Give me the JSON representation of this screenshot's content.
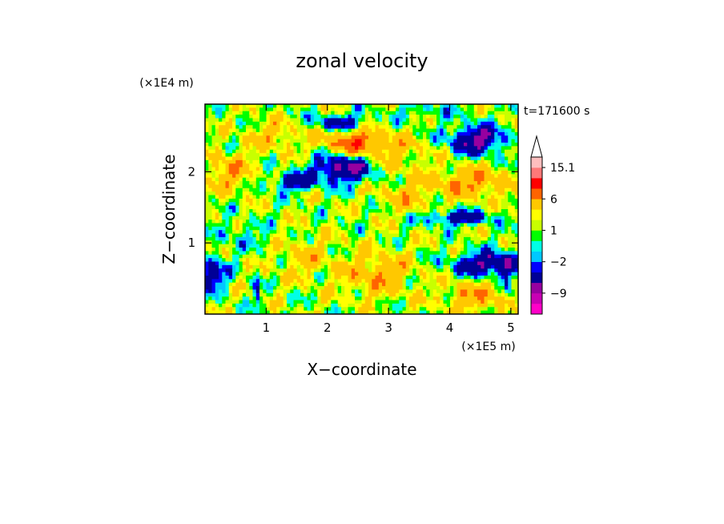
{
  "chart_data": {
    "type": "heatmap",
    "title": "zonal velocity",
    "xlabel": "X−coordinate",
    "ylabel": "Z−coordinate",
    "x_unit": "(×1E5 m)",
    "y_unit": "(×1E4 m)",
    "time_label": "t=171600 s",
    "xlim": [
      0,
      5.12
    ],
    "ylim": [
      0,
      2.95
    ],
    "x_ticks": [
      1,
      2,
      3,
      4,
      5
    ],
    "y_ticks": [
      1,
      2
    ],
    "colorbar": {
      "levels": [
        -15.1,
        -12.1,
        -9,
        -6,
        -3,
        -2,
        -1,
        0,
        1,
        2,
        3,
        6,
        9,
        12,
        15.1
      ],
      "colors": [
        "#ff00c8",
        "#c800b4",
        "#9600a0",
        "#000096",
        "#0000ff",
        "#00c8ff",
        "#00ffe6",
        "#00ff00",
        "#c8ff00",
        "#ffff00",
        "#ffc800",
        "#ff6400",
        "#ff0000",
        "#ff7878",
        "#ffbebe"
      ],
      "tick_labels": [
        {
          "value": 15.1,
          "label": "15.1"
        },
        {
          "value": 6,
          "label": "6"
        },
        {
          "value": 1,
          "label": "1"
        },
        {
          "value": -2,
          "label": "−2"
        },
        {
          "value": -9,
          "label": "−9"
        }
      ]
    },
    "features": [
      {
        "x": 4.45,
        "z": 2.45,
        "u": -8,
        "sx": 0.45,
        "sz": 0.2
      },
      {
        "x": 2.25,
        "z": 2.05,
        "u": -8,
        "sx": 0.5,
        "sz": 0.2
      },
      {
        "x": 1.45,
        "z": 1.85,
        "u": -6,
        "sx": 0.35,
        "sz": 0.12
      },
      {
        "x": 4.15,
        "z": 1.35,
        "u": -6,
        "sx": 0.55,
        "sz": 0.1
      },
      {
        "x": 4.7,
        "z": 0.7,
        "u": -8,
        "sx": 0.6,
        "sz": 0.17
      },
      {
        "x": 0.1,
        "z": 0.55,
        "u": -6,
        "sx": 0.25,
        "sz": 0.25
      },
      {
        "x": 2.2,
        "z": 2.7,
        "u": -6,
        "sx": 0.4,
        "sz": 0.1
      },
      {
        "x": 2.5,
        "z": 2.4,
        "u": 7,
        "sx": 0.55,
        "sz": 0.17
      },
      {
        "x": 4.35,
        "z": 1.85,
        "u": 5,
        "sx": 0.6,
        "sz": 0.2
      },
      {
        "x": 2.8,
        "z": 0.55,
        "u": 4,
        "sx": 0.55,
        "sz": 0.3
      },
      {
        "x": 0.4,
        "z": 2.0,
        "u": 4,
        "sx": 0.35,
        "sz": 0.25
      },
      {
        "x": 4.45,
        "z": 0.25,
        "u": 4,
        "sx": 0.55,
        "sz": 0.22
      },
      {
        "x": 1.1,
        "z": 2.5,
        "u": 3,
        "sx": 0.4,
        "sz": 0.2
      },
      {
        "x": 3.3,
        "z": 1.65,
        "u": 3,
        "sx": 0.4,
        "sz": 0.2
      },
      {
        "x": 0.6,
        "z": 1.1,
        "u": -2,
        "sx": 0.5,
        "sz": 0.2
      },
      {
        "x": 3.2,
        "z": 2.2,
        "u": 2,
        "sx": 0.5,
        "sz": 0.25
      },
      {
        "x": 1.6,
        "z": 0.8,
        "u": 2,
        "sx": 0.5,
        "sz": 0.3
      },
      {
        "x": 3.6,
        "z": 2.85,
        "u": -2,
        "sx": 0.6,
        "sz": 0.12
      },
      {
        "x": 0.85,
        "z": 0.3,
        "u": -5,
        "sx": 0.05,
        "sz": 0.25
      },
      {
        "x": 4.95,
        "z": 0.35,
        "u": -4,
        "sx": 0.06,
        "sz": 0.25
      }
    ]
  }
}
